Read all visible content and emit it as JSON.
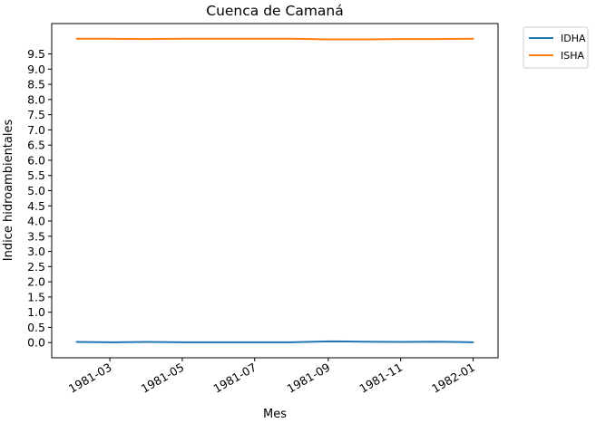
{
  "chart_data": {
    "type": "line",
    "title": "Cuenca de Camaná",
    "xlabel": "Mes",
    "ylabel": "Indice hidroambientales",
    "x": [
      "1981-02-01",
      "1981-03-01",
      "1981-04-01",
      "1981-05-01",
      "1981-06-01",
      "1981-07-01",
      "1981-08-01",
      "1981-09-01",
      "1981-10-01",
      "1981-11-01",
      "1981-12-01",
      "1982-01-01"
    ],
    "xlim": [
      "1981-01-11",
      "1982-01-22"
    ],
    "ylim": [
      -0.5,
      10.5
    ],
    "x_ticks": [
      "1981-03",
      "1981-05",
      "1981-07",
      "1981-09",
      "1981-11",
      "1982-01"
    ],
    "x_tick_dates": [
      "1981-03-01",
      "1981-05-01",
      "1981-07-01",
      "1981-09-01",
      "1981-11-01",
      "1982-01-01"
    ],
    "y_ticks": [
      "0.0",
      "0.5",
      "1.0",
      "1.5",
      "2.0",
      "2.5",
      "3.0",
      "3.5",
      "4.0",
      "4.5",
      "5.0",
      "5.5",
      "6.0",
      "6.5",
      "7.0",
      "7.5",
      "8.0",
      "8.5",
      "9.0",
      "9.5"
    ],
    "series": [
      {
        "name": "IDHA",
        "color": "#1f77b4",
        "values": [
          0.02,
          0.01,
          0.02,
          0.01,
          0.01,
          0.01,
          0.01,
          0.04,
          0.03,
          0.02,
          0.03,
          0.01
        ]
      },
      {
        "name": "ISHA",
        "color": "#ff7f0e",
        "values": [
          10.0,
          10.0,
          9.99,
          10.0,
          10.0,
          10.0,
          10.0,
          9.98,
          9.98,
          9.99,
          9.99,
          10.0
        ]
      }
    ],
    "grid": false,
    "legend": "outside-top-right"
  }
}
